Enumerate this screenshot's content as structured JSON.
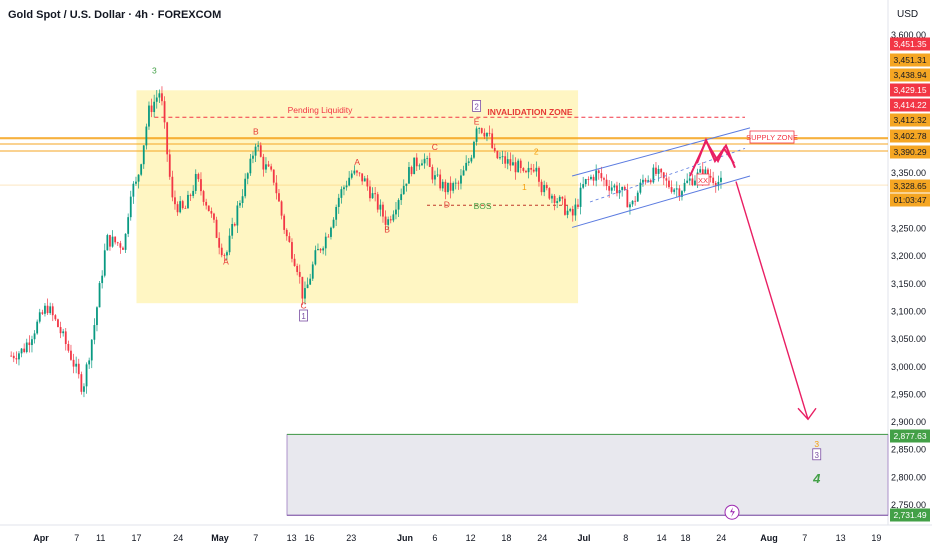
{
  "header": {
    "title": "Gold Spot / U.S. Dollar · 4h · FOREXCOM",
    "currency": "USD"
  },
  "colors": {
    "up": "#089981",
    "down": "#f23645",
    "zone_fill": "#fff4b8",
    "orange_line": "#f5a623",
    "channel": "#5b7be0",
    "projection": "#e91e63",
    "label_red": "#e53935",
    "label_green": "#43a047",
    "label_orange": "#f59e0b",
    "label_purple": "#7b4fa3",
    "target_fill": "#e8e8ee"
  },
  "chart_data": {
    "type": "candlestick",
    "ylim": [
      2700,
      3610
    ],
    "y_ticks": [
      2750,
      2800,
      2850,
      2900,
      2950,
      3000,
      3050,
      3100,
      3150,
      3200,
      3250,
      3300,
      3350,
      3600
    ],
    "x_ticks": [
      {
        "label": "Apr",
        "date": "2025-04-01",
        "bold": true
      },
      {
        "label": "7",
        "date": "2025-04-07"
      },
      {
        "label": "11",
        "date": "2025-04-11"
      },
      {
        "label": "17",
        "date": "2025-04-17"
      },
      {
        "label": "24",
        "date": "2025-04-24"
      },
      {
        "label": "May",
        "date": "2025-05-01",
        "bold": true
      },
      {
        "label": "7",
        "date": "2025-05-07"
      },
      {
        "label": "13",
        "date": "2025-05-13"
      },
      {
        "label": "16",
        "date": "2025-05-16"
      },
      {
        "label": "23",
        "date": "2025-05-23"
      },
      {
        "label": "Jun",
        "date": "2025-06-01",
        "bold": true
      },
      {
        "label": "6",
        "date": "2025-06-06"
      },
      {
        "label": "12",
        "date": "2025-06-12"
      },
      {
        "label": "18",
        "date": "2025-06-18"
      },
      {
        "label": "24",
        "date": "2025-06-24"
      },
      {
        "label": "Jul",
        "date": "2025-07-01",
        "bold": true
      },
      {
        "label": "8",
        "date": "2025-07-08"
      },
      {
        "label": "14",
        "date": "2025-07-14"
      },
      {
        "label": "18",
        "date": "2025-07-18"
      },
      {
        "label": "24",
        "date": "2025-07-24"
      },
      {
        "label": "Aug",
        "date": "2025-08-01",
        "bold": true
      },
      {
        "label": "7",
        "date": "2025-08-07"
      },
      {
        "label": "13",
        "date": "2025-08-13"
      },
      {
        "label": "19",
        "date": "2025-08-19"
      }
    ],
    "price_path": [
      [
        "2025-03-27",
        3020
      ],
      [
        "2025-03-29",
        3030
      ],
      [
        "2025-04-02",
        3110
      ],
      [
        "2025-04-04",
        3070
      ],
      [
        "2025-04-06",
        3020
      ],
      [
        "2025-04-08",
        2960
      ],
      [
        "2025-04-10",
        3080
      ],
      [
        "2025-04-12",
        3230
      ],
      [
        "2025-04-15",
        3220
      ],
      [
        "2025-04-16",
        3320
      ],
      [
        "2025-04-17",
        3330
      ],
      [
        "2025-04-18",
        3390
      ],
      [
        "2025-04-19",
        3460
      ],
      [
        "2025-04-21",
        3500
      ],
      [
        "2025-04-22",
        3400
      ],
      [
        "2025-04-23",
        3300
      ],
      [
        "2025-04-25",
        3280
      ],
      [
        "2025-04-27",
        3340
      ],
      [
        "2025-04-29",
        3290
      ],
      [
        "2025-05-01",
        3220
      ],
      [
        "2025-05-02",
        3200
      ],
      [
        "2025-05-04",
        3290
      ],
      [
        "2025-05-06",
        3360
      ],
      [
        "2025-05-07",
        3410
      ],
      [
        "2025-05-08",
        3370
      ],
      [
        "2025-05-10",
        3340
      ],
      [
        "2025-05-12",
        3240
      ],
      [
        "2025-05-14",
        3180
      ],
      [
        "2025-05-15",
        3120
      ],
      [
        "2025-05-17",
        3200
      ],
      [
        "2025-05-19",
        3240
      ],
      [
        "2025-05-21",
        3310
      ],
      [
        "2025-05-23",
        3350
      ],
      [
        "2025-05-25",
        3340
      ],
      [
        "2025-05-27",
        3300
      ],
      [
        "2025-05-29",
        3260
      ],
      [
        "2025-05-31",
        3310
      ],
      [
        "2025-06-02",
        3360
      ],
      [
        "2025-06-04",
        3380
      ],
      [
        "2025-06-06",
        3340
      ],
      [
        "2025-06-08",
        3320
      ],
      [
        "2025-06-10",
        3330
      ],
      [
        "2025-06-12",
        3380
      ],
      [
        "2025-06-13",
        3440
      ],
      [
        "2025-06-15",
        3420
      ],
      [
        "2025-06-16",
        3380
      ],
      [
        "2025-06-18",
        3370
      ],
      [
        "2025-06-20",
        3360
      ],
      [
        "2025-06-21",
        3340
      ],
      [
        "2025-06-23",
        3370
      ],
      [
        "2025-06-24",
        3320
      ],
      [
        "2025-06-26",
        3310
      ],
      [
        "2025-06-29",
        3270
      ],
      [
        "2025-07-01",
        3330
      ],
      [
        "2025-07-03",
        3350
      ],
      [
        "2025-07-05",
        3330
      ],
      [
        "2025-07-07",
        3320
      ],
      [
        "2025-07-09",
        3290
      ],
      [
        "2025-07-11",
        3340
      ],
      [
        "2025-07-13",
        3350
      ],
      [
        "2025-07-15",
        3330
      ],
      [
        "2025-07-17",
        3320
      ],
      [
        "2025-07-19",
        3340
      ],
      [
        "2025-07-21",
        3350
      ],
      [
        "2025-07-23",
        3340
      ],
      [
        "2025-07-24",
        3330
      ]
    ],
    "price_levels": [
      {
        "value": 3451.35,
        "label": "3,451.35",
        "bg": "#f23645",
        "fg": "#ffffff"
      },
      {
        "value": 3451.31,
        "label": "3,451.31",
        "bg": "#f5a623",
        "fg": "#131722"
      },
      {
        "value": 3438.94,
        "label": "3,438.94",
        "bg": "#f5a623",
        "fg": "#131722"
      },
      {
        "value": 3429.15,
        "label": "3,429.15",
        "bg": "#f23645",
        "fg": "#ffffff"
      },
      {
        "value": 3414.22,
        "label": "3,414.22",
        "bg": "#f23645",
        "fg": "#ffffff"
      },
      {
        "value": 3412.32,
        "label": "3,412.32",
        "bg": "#f5a623",
        "fg": "#131722"
      },
      {
        "value": 3402.78,
        "label": "3,402.78",
        "bg": "#f5a623",
        "fg": "#131722"
      },
      {
        "value": 3390.29,
        "label": "3,390.29",
        "bg": "#f5a623",
        "fg": "#131722"
      },
      {
        "value": 3328.65,
        "label": "3,328.65",
        "bg": "#f5a623",
        "fg": "#131722"
      },
      {
        "value": 3308.0,
        "label": "01:03:47",
        "bg": "#f5a623",
        "fg": "#131722"
      },
      {
        "value": 2877.63,
        "label": "2,877.63",
        "bg": "#43a047",
        "fg": "#ffffff"
      },
      {
        "value": 2731.49,
        "label": "2,731.49",
        "bg": "#43a047",
        "fg": "#ffffff"
      }
    ],
    "annotations": [
      {
        "text": "3",
        "date": "2025-04-20",
        "y": 3530,
        "color": "#43a047"
      },
      {
        "text": "B",
        "date": "2025-05-07",
        "y": 3420,
        "color": "#e53935"
      },
      {
        "text": "A",
        "date": "2025-05-02",
        "y": 3185,
        "color": "#e53935"
      },
      {
        "text": "C",
        "date": "2025-05-15",
        "y": 3105,
        "color": "#e53935"
      },
      {
        "text": "A",
        "date": "2025-05-24",
        "y": 3365,
        "color": "#e53935"
      },
      {
        "text": "B",
        "date": "2025-05-29",
        "y": 3243,
        "color": "#e53935"
      },
      {
        "text": "C",
        "date": "2025-06-06",
        "y": 3392,
        "color": "#e53935"
      },
      {
        "text": "D",
        "date": "2025-06-08",
        "y": 3288,
        "color": "#e53935"
      },
      {
        "text": "E",
        "date": "2025-06-13",
        "y": 3438,
        "color": "#e53935"
      },
      {
        "text": "1",
        "date": "2025-06-21",
        "y": 3320,
        "color": "#f59e0b"
      },
      {
        "text": "2",
        "date": "2025-06-23",
        "y": 3384,
        "color": "#f59e0b"
      },
      {
        "text": "BOS",
        "date": "2025-06-14",
        "y": 3285,
        "color": "#43a047"
      },
      {
        "text": "3",
        "date": "2025-08-09",
        "y": 2855,
        "color": "#f59e0b"
      },
      {
        "text": "4",
        "date": "2025-08-09",
        "y": 2790,
        "color": "#43a047",
        "big": true
      }
    ],
    "boxed_labels": [
      {
        "text": "2",
        "date": "2025-06-13",
        "y": 3469
      },
      {
        "text": "1",
        "date": "2025-05-15",
        "y": 3090
      },
      {
        "text": "3",
        "date": "2025-08-09",
        "y": 2839
      }
    ],
    "zone_labels": {
      "pending_liquidity": "Pending Liquidity",
      "invalidation_zone": "INVALIDATION ZONE",
      "supply_zone": "SUPPLY ZONE",
      "xx": "XX"
    },
    "event_icon": "lightning-icon"
  }
}
